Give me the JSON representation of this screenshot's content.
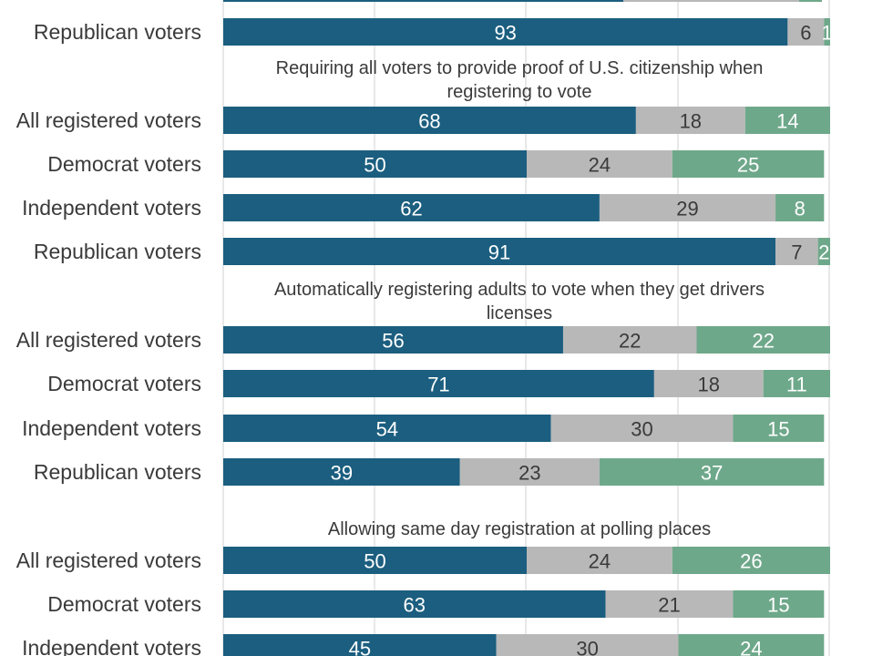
{
  "chart_data": {
    "type": "bar",
    "orientation": "horizontal",
    "stacked": true,
    "xlim": [
      0,
      100
    ],
    "grid": true,
    "colors": [
      "#1b5e7f",
      "#b8b8b8",
      "#6ea88a"
    ],
    "label_colors": [
      "#ffffff",
      "#3a3a3a",
      "#ffffff"
    ],
    "groups": [
      {
        "title": "",
        "rows": [
          {
            "label": "Republican voters",
            "values": [
              93,
              6,
              1
            ]
          }
        ]
      },
      {
        "title": "Requiring all voters to provide proof of U.S. citizenship when registering to vote",
        "title_lines": [
          "Requiring all voters to provide proof of U.S. citizenship when",
          "registering to vote"
        ],
        "rows": [
          {
            "label": "All registered voters",
            "values": [
              68,
              18,
              14
            ]
          },
          {
            "label": "Democrat voters",
            "values": [
              50,
              24,
              25
            ]
          },
          {
            "label": "Independent voters",
            "values": [
              62,
              29,
              8
            ]
          },
          {
            "label": "Republican voters",
            "values": [
              91,
              7,
              2
            ]
          }
        ]
      },
      {
        "title": "Automatically registering adults to vote when they get drivers licenses",
        "title_lines": [
          "Automatically registering adults to vote when they get drivers",
          "licenses"
        ],
        "rows": [
          {
            "label": "All registered voters",
            "values": [
              56,
              22,
              22
            ]
          },
          {
            "label": "Democrat voters",
            "values": [
              71,
              18,
              11
            ]
          },
          {
            "label": "Independent voters",
            "values": [
              54,
              30,
              15
            ]
          },
          {
            "label": "Republican voters",
            "values": [
              39,
              23,
              37
            ]
          }
        ]
      },
      {
        "title": "Allowing same day registration at polling places",
        "title_lines": [
          "Allowing same day registration at polling places"
        ],
        "rows": [
          {
            "label": "All registered voters",
            "values": [
              50,
              24,
              26
            ]
          },
          {
            "label": "Democrat voters",
            "values": [
              63,
              21,
              15
            ]
          },
          {
            "label": "Independent voters",
            "values": [
              45,
              30,
              24
            ]
          }
        ]
      }
    ]
  }
}
